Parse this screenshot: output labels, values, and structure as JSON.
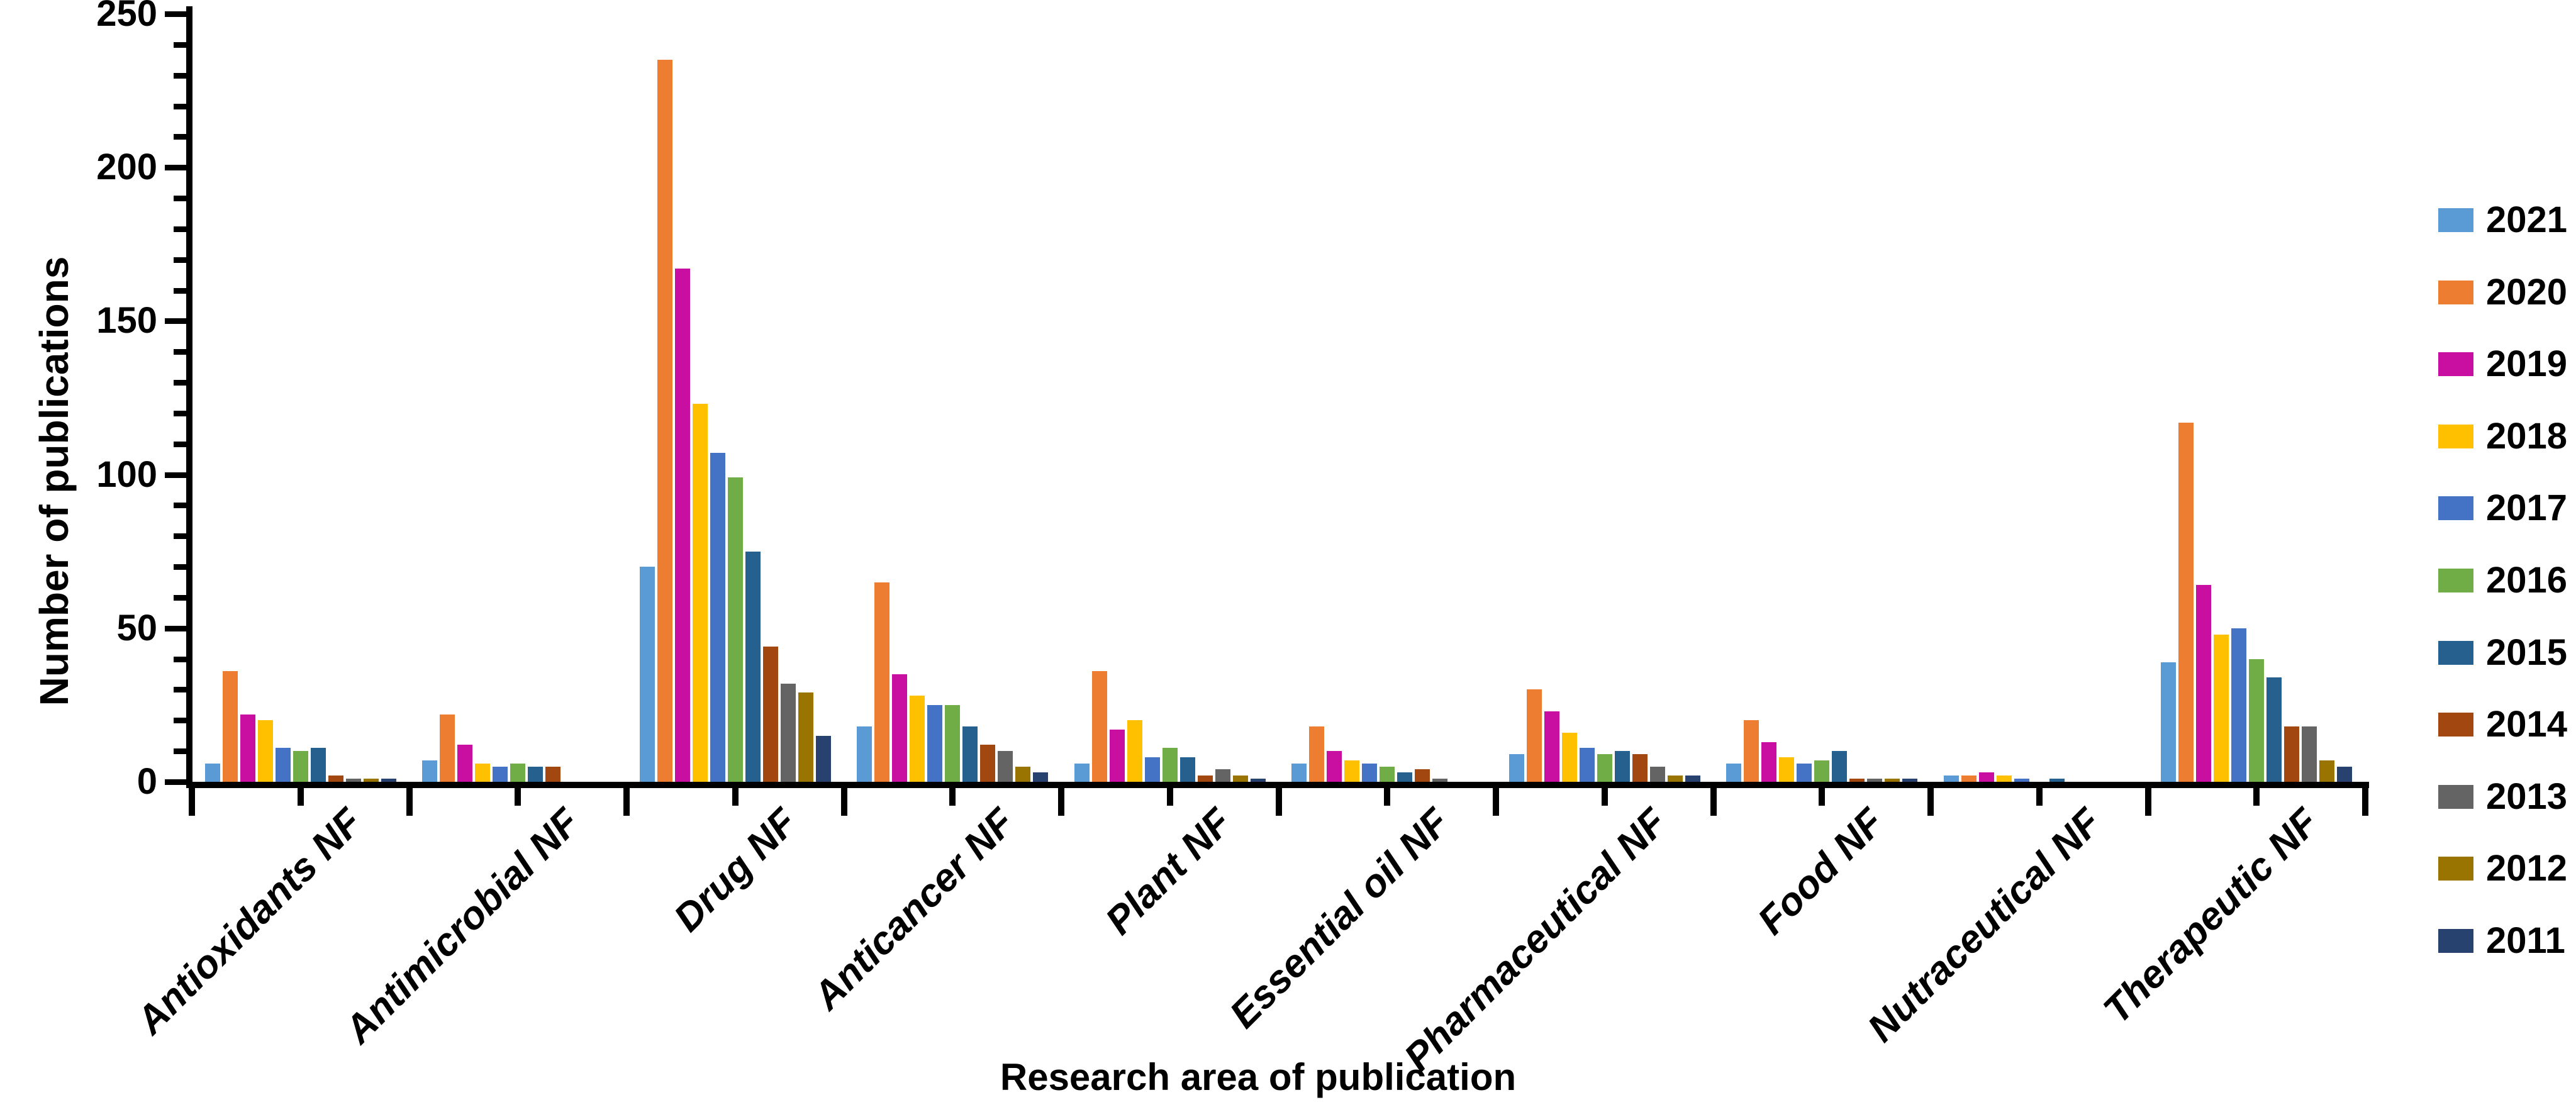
{
  "figure": {
    "background": "#FFFFFF",
    "text_color": "#000000"
  },
  "chart_data": {
    "type": "bar",
    "title": "",
    "xlabel": "Research area of publication",
    "ylabel": "Number of publications",
    "categories": [
      "Antioxidants NF",
      "Antimicrobial NF",
      "Drug NF",
      "Anticancer NF",
      "Plant NF",
      "Essential oil NF",
      "Pharmaceutical NF",
      "Food NF",
      "Nutraceutical NF",
      "Therapeutic NF"
    ],
    "series": [
      {
        "name": "2021",
        "color": "#5B9BD5",
        "values": [
          6,
          7,
          70,
          18,
          6,
          6,
          9,
          6,
          2,
          39
        ]
      },
      {
        "name": "2020",
        "color": "#ED7D31",
        "values": [
          36,
          22,
          235,
          65,
          36,
          18,
          30,
          20,
          2,
          117
        ]
      },
      {
        "name": "2019",
        "color": "#C80FA2",
        "values": [
          22,
          12,
          167,
          35,
          17,
          10,
          23,
          13,
          3,
          64
        ]
      },
      {
        "name": "2018",
        "color": "#FFC000",
        "values": [
          20,
          6,
          123,
          28,
          20,
          7,
          16,
          8,
          2,
          48
        ]
      },
      {
        "name": "2017",
        "color": "#4472C4",
        "values": [
          11,
          5,
          107,
          25,
          8,
          6,
          11,
          6,
          1,
          50
        ]
      },
      {
        "name": "2016",
        "color": "#70AD47",
        "values": [
          10,
          6,
          99,
          25,
          11,
          5,
          9,
          7,
          0,
          40
        ]
      },
      {
        "name": "2015",
        "color": "#26608F",
        "values": [
          11,
          5,
          75,
          18,
          8,
          3,
          10,
          10,
          1,
          34
        ]
      },
      {
        "name": "2014",
        "color": "#A34711",
        "values": [
          2,
          5,
          44,
          12,
          2,
          4,
          9,
          1,
          0,
          18
        ]
      },
      {
        "name": "2013",
        "color": "#646464",
        "values": [
          1,
          0,
          32,
          10,
          4,
          1,
          5,
          1,
          0,
          18
        ]
      },
      {
        "name": "2012",
        "color": "#9A7400",
        "values": [
          1,
          0,
          29,
          5,
          2,
          0,
          2,
          1,
          0,
          7
        ]
      },
      {
        "name": "2011",
        "color": "#28426F",
        "values": [
          1,
          0,
          15,
          3,
          1,
          0,
          2,
          1,
          0,
          5
        ]
      }
    ],
    "ylim": [
      0,
      250
    ],
    "y_ticks": [
      0,
      50,
      100,
      150,
      200,
      250
    ],
    "y_minor_step": 10,
    "grid": "off",
    "legend_position": "right"
  }
}
